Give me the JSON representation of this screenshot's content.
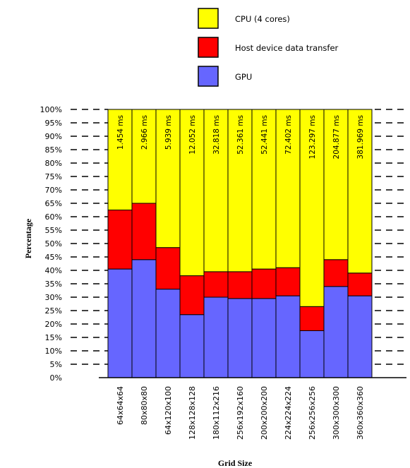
{
  "chart_data": {
    "type": "bar",
    "stacked": true,
    "xlabel": "Grid Size",
    "ylabel": "Percentage",
    "ylim": [
      0,
      100
    ],
    "yticks": [
      "0%",
      "5%",
      "10%",
      "15%",
      "20%",
      "25%",
      "30%",
      "35%",
      "40%",
      "45%",
      "50%",
      "55%",
      "60%",
      "65%",
      "70%",
      "75%",
      "80%",
      "85%",
      "90%",
      "95%",
      "100%"
    ],
    "legend_position": "top-center",
    "categories": [
      "64x64x64",
      "80x80x80",
      "64x120x100",
      "128x128x128",
      "180x112x216",
      "256x192x160",
      "200x200x200",
      "224x224x224",
      "256x256x256",
      "300x300x300",
      "360x360x360"
    ],
    "bar_labels": [
      "1.454 ms",
      "2.966 ms",
      "5.939 ms",
      "12.052 ms",
      "32.818 ms",
      "52.361 ms",
      "52.441 ms",
      "72.402 ms",
      "123.297 ms",
      "204.877 ms",
      "381.969 ms"
    ],
    "series": [
      {
        "name": "GPU",
        "color": "#6666ff",
        "values": [
          40.5,
          44,
          33,
          23.5,
          30,
          29.5,
          29.5,
          30.5,
          17.5,
          34,
          30.5
        ]
      },
      {
        "name": "Host device data transfer",
        "color": "#ff0000",
        "values": [
          22,
          21,
          15.5,
          14.5,
          9.5,
          10,
          11,
          10.5,
          9,
          10,
          8.5
        ]
      },
      {
        "name": "CPU (4 cores)",
        "color": "#ffff00",
        "values": [
          37.5,
          35,
          51.5,
          62,
          60.5,
          60.5,
          59.5,
          59,
          73.5,
          56,
          61
        ]
      }
    ]
  }
}
